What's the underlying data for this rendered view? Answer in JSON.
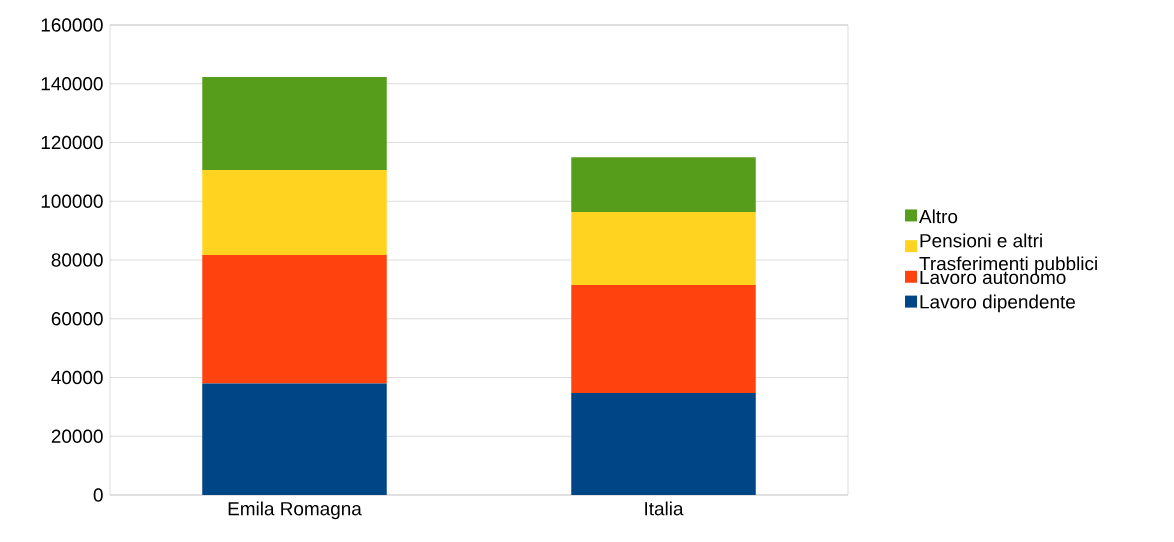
{
  "chart_data": {
    "type": "bar",
    "stacked": true,
    "categories": [
      "Emila Romagna",
      "Italia"
    ],
    "series": [
      {
        "name": "Lavoro dipendente",
        "color": "#004586",
        "values": [
          38000,
          34700
        ]
      },
      {
        "name": "Lavoro autonomo",
        "color": "#ff420e",
        "values": [
          43700,
          36800
        ]
      },
      {
        "name": "Pensioni e altri Trasferimenti pubblici",
        "color": "#ffd320",
        "values": [
          28900,
          24800
        ]
      },
      {
        "name": "Altro",
        "color": "#579d1c",
        "values": [
          31700,
          18700
        ]
      }
    ],
    "ylim": [
      0,
      160000
    ],
    "yticks": [
      0,
      20000,
      40000,
      60000,
      80000,
      100000,
      120000,
      140000,
      160000
    ],
    "grid": "y",
    "legend": "right"
  }
}
